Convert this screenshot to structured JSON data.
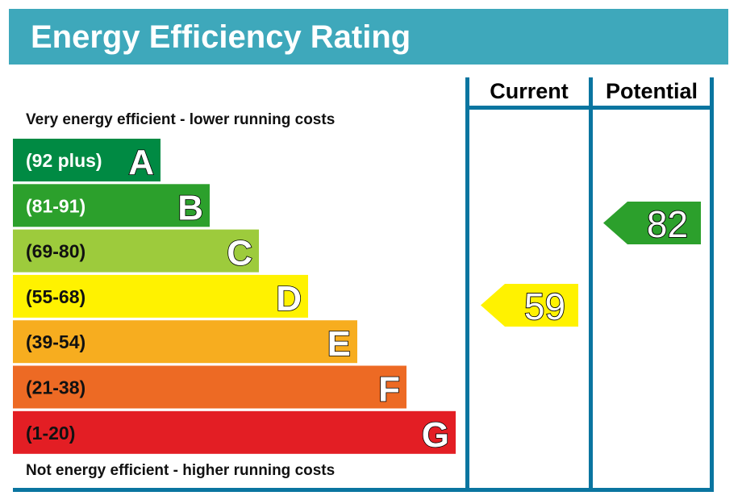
{
  "title": "Energy Efficiency Rating",
  "top_note": "Very energy efficient - lower running costs",
  "bottom_note": "Not energy efficient - higher running costs",
  "columns": {
    "current": "Current",
    "potential": "Potential"
  },
  "colors": {
    "header": "#3ea8bb",
    "frame": "#0a75a0"
  },
  "chart_data": {
    "type": "bar",
    "bands": [
      {
        "letter": "A",
        "range": "(92 plus)",
        "color": "#008a43",
        "text_color": "#ffffff"
      },
      {
        "letter": "B",
        "range": "(81-91)",
        "color": "#2ca02c",
        "text_color": "#ffffff"
      },
      {
        "letter": "C",
        "range": "(69-80)",
        "color": "#9dcb3c",
        "text_color": "#111111"
      },
      {
        "letter": "D",
        "range": "(55-68)",
        "color": "#fff200",
        "text_color": "#111111"
      },
      {
        "letter": "E",
        "range": "(39-54)",
        "color": "#f7ad1f",
        "text_color": "#111111"
      },
      {
        "letter": "F",
        "range": "(21-38)",
        "color": "#ed6a24",
        "text_color": "#111111"
      },
      {
        "letter": "G",
        "range": "(1-20)",
        "color": "#e31e24",
        "text_color": "#111111"
      }
    ],
    "current": {
      "value": 59,
      "band": "D",
      "color": "#fff200"
    },
    "potential": {
      "value": 82,
      "band": "B",
      "color": "#2ca02c"
    }
  }
}
